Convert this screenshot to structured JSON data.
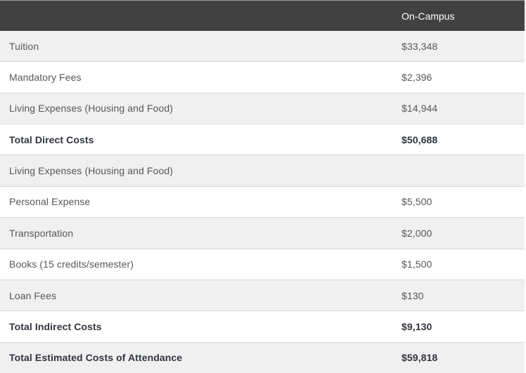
{
  "table": {
    "header": {
      "label_col": "",
      "value_col": "On-Campus"
    },
    "rows": [
      {
        "label": "Tuition",
        "value": "$33,348",
        "bold": false
      },
      {
        "label": "Mandatory Fees",
        "value": "$2,396",
        "bold": false
      },
      {
        "label": "Living Expenses (Housing and Food)",
        "value": "$14,944",
        "bold": false
      },
      {
        "label": "Total Direct Costs",
        "value": "$50,688",
        "bold": true
      },
      {
        "label": "Living Expenses (Housing and Food)",
        "value": "",
        "bold": false
      },
      {
        "label": "Personal Expense",
        "value": "$5,500",
        "bold": false
      },
      {
        "label": "Transportation",
        "value": "$2,000",
        "bold": false
      },
      {
        "label": "Books (15 credits/semester)",
        "value": "$1,500",
        "bold": false
      },
      {
        "label": "Loan Fees",
        "value": "$130",
        "bold": false
      },
      {
        "label": "Total Indirect Costs",
        "value": "$9,130",
        "bold": true
      },
      {
        "label": "Total Estimated Costs of Attendance",
        "value": "$59,818",
        "bold": true
      }
    ],
    "colors": {
      "header_bg": "#414141",
      "header_text": "#ffffff",
      "row_bg": "#ffffff",
      "row_alt_bg": "#f0f0f0",
      "divider": "#d8d8d8",
      "text": "#55575c",
      "total_text": "#30343d",
      "top_border": "#9c9c9c"
    }
  }
}
